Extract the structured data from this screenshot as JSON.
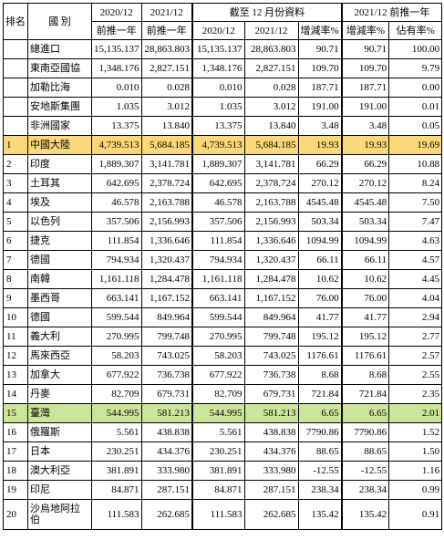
{
  "header": {
    "rank": "排名",
    "country": "國 別",
    "y2020": "2020/12",
    "y2021": "2021/12",
    "prev_year": "前推一年",
    "cum_title": "截至 12 月份資料",
    "cum_2020": "2020/12",
    "cum_2021": "2021/12",
    "growth": "增減率%",
    "share_title": "2021/12 前推一年",
    "share_growth": "增減率%",
    "share": "佔有率%"
  },
  "rows": [
    {
      "rank": "",
      "name": "總進口",
      "a": "15,135.137",
      "b": "28,863.803",
      "c": "15,135.137",
      "d": "28,863.803",
      "e": "90.71",
      "f": "90.71",
      "g": "100.00"
    },
    {
      "rank": "",
      "name": "東南亞國協",
      "a": "1,348.176",
      "b": "2,827.151",
      "c": "1,348.176",
      "d": "2,827.151",
      "e": "109.70",
      "f": "109.70",
      "g": "9.79"
    },
    {
      "rank": "",
      "name": "加勒比海",
      "a": "0.010",
      "b": "0.028",
      "c": "0.010",
      "d": "0.028",
      "e": "187.71",
      "f": "187.71",
      "g": "0.00"
    },
    {
      "rank": "",
      "name": "安地斯集團",
      "a": "1.035",
      "b": "3.012",
      "c": "1.035",
      "d": "3.012",
      "e": "191.00",
      "f": "191.00",
      "g": "0.01"
    },
    {
      "rank": "",
      "name": "非洲國家",
      "a": "13.375",
      "b": "13.840",
      "c": "13.375",
      "d": "13.840",
      "e": "3.48",
      "f": "3.48",
      "g": "0.05"
    },
    {
      "rank": "1",
      "name": "中國大陸",
      "a": "4,739.513",
      "b": "5,684.185",
      "c": "4,739.513",
      "d": "5,684.185",
      "e": "19.93",
      "f": "19.93",
      "g": "19.69",
      "hl": "orange"
    },
    {
      "rank": "2",
      "name": "印度",
      "a": "1,889.307",
      "b": "3,141.781",
      "c": "1,889.307",
      "d": "3,141.781",
      "e": "66.29",
      "f": "66.29",
      "g": "10.88"
    },
    {
      "rank": "3",
      "name": "土耳其",
      "a": "642.695",
      "b": "2,378.724",
      "c": "642.695",
      "d": "2,378.724",
      "e": "270.12",
      "f": "270.12",
      "g": "8.24"
    },
    {
      "rank": "4",
      "name": "埃及",
      "a": "46.578",
      "b": "2,163.788",
      "c": "46.578",
      "d": "2,163.788",
      "e": "4545.48",
      "f": "4545.48",
      "g": "7.50"
    },
    {
      "rank": "5",
      "name": "以色列",
      "a": "357.506",
      "b": "2,156.993",
      "c": "357.506",
      "d": "2,156.993",
      "e": "503.34",
      "f": "503.34",
      "g": "7.47"
    },
    {
      "rank": "6",
      "name": "捷克",
      "a": "111.854",
      "b": "1,336.646",
      "c": "111.854",
      "d": "1,336.646",
      "e": "1094.99",
      "f": "1094.99",
      "g": "4.63"
    },
    {
      "rank": "7",
      "name": "德國",
      "a": "794.934",
      "b": "1,320.437",
      "c": "794.934",
      "d": "1,320.437",
      "e": "66.11",
      "f": "66.11",
      "g": "4.57"
    },
    {
      "rank": "8",
      "name": "南韓",
      "a": "1,161.118",
      "b": "1,284.478",
      "c": "1,161.118",
      "d": "1,284.478",
      "e": "10.62",
      "f": "10.62",
      "g": "4.45"
    },
    {
      "rank": "9",
      "name": "墨西哥",
      "a": "663.141",
      "b": "1,167.152",
      "c": "663.141",
      "d": "1,167.152",
      "e": "76.00",
      "f": "76.00",
      "g": "4.04"
    },
    {
      "rank": "10",
      "name": "德國",
      "a": "599.544",
      "b": "849.964",
      "c": "599.544",
      "d": "849.964",
      "e": "41.77",
      "f": "41.77",
      "g": "2.94"
    },
    {
      "rank": "11",
      "name": "義大利",
      "a": "270.995",
      "b": "799.748",
      "c": "270.995",
      "d": "799.748",
      "e": "195.12",
      "f": "195.12",
      "g": "2.77"
    },
    {
      "rank": "12",
      "name": "馬來西亞",
      "a": "58.203",
      "b": "743.025",
      "c": "58.203",
      "d": "743.025",
      "e": "1176.61",
      "f": "1176.61",
      "g": "2.57"
    },
    {
      "rank": "13",
      "name": "加拿大",
      "a": "677.922",
      "b": "736.738",
      "c": "677.922",
      "d": "736.738",
      "e": "8.68",
      "f": "8.68",
      "g": "2.55"
    },
    {
      "rank": "14",
      "name": "丹麥",
      "a": "82.709",
      "b": "679.731",
      "c": "82.709",
      "d": "679.731",
      "e": "721.84",
      "f": "721.84",
      "g": "2.35"
    },
    {
      "rank": "15",
      "name": "臺灣",
      "a": "544.995",
      "b": "581.213",
      "c": "544.995",
      "d": "581.213",
      "e": "6.65",
      "f": "6.65",
      "g": "2.01",
      "hl": "green"
    },
    {
      "rank": "16",
      "name": "俄羅斯",
      "a": "5.561",
      "b": "438.838",
      "c": "5.561",
      "d": "438.838",
      "e": "7790.86",
      "f": "7790.86",
      "g": "1.52"
    },
    {
      "rank": "17",
      "name": "日本",
      "a": "230.251",
      "b": "434.376",
      "c": "230.251",
      "d": "434.376",
      "e": "88.65",
      "f": "88.65",
      "g": "1.50"
    },
    {
      "rank": "18",
      "name": "澳大利亞",
      "a": "381.891",
      "b": "333.980",
      "c": "381.891",
      "d": "333.980",
      "e": "-12.55",
      "f": "-12.55",
      "g": "1.16"
    },
    {
      "rank": "19",
      "name": "印尼",
      "a": "84.871",
      "b": "287.151",
      "c": "84.871",
      "d": "287.151",
      "e": "238.34",
      "f": "238.34",
      "g": "0.99"
    },
    {
      "rank": "20",
      "name": "沙烏地阿拉伯",
      "a": "111.583",
      "b": "262.685",
      "c": "111.583",
      "d": "262.685",
      "e": "135.42",
      "f": "135.42",
      "g": "0.91",
      "tall": true
    }
  ]
}
